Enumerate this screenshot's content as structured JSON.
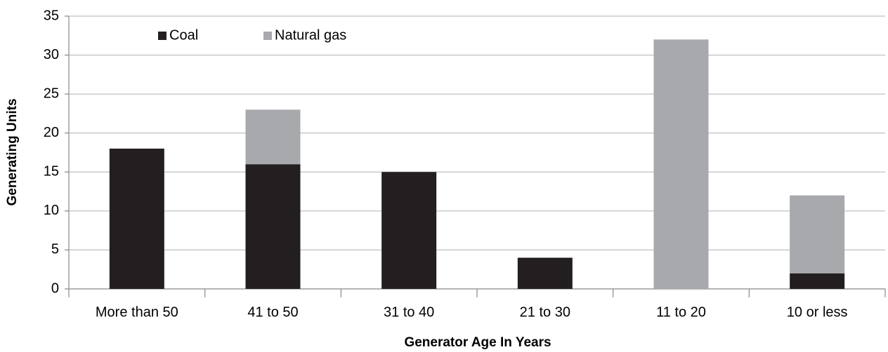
{
  "chart_data": {
    "type": "stacked_bar",
    "x_label": "Generator Age In Years",
    "y_label": "Generating Units",
    "categories": [
      "More than 50",
      "41 to 50",
      "31 to 40",
      "21 to 30",
      "11 to 20",
      "10 or less"
    ],
    "series": [
      {
        "name": "Coal",
        "color": "#231f20",
        "values": [
          18,
          16,
          15,
          4,
          0,
          2
        ]
      },
      {
        "name": "Natural gas",
        "color": "#a7a9ac",
        "values": [
          0,
          7,
          0,
          0,
          32,
          10
        ]
      }
    ],
    "ylim": [
      0,
      35
    ],
    "yticks": [
      0,
      5,
      10,
      15,
      20,
      25,
      30,
      35
    ],
    "grid": true,
    "legend": "top-left"
  }
}
